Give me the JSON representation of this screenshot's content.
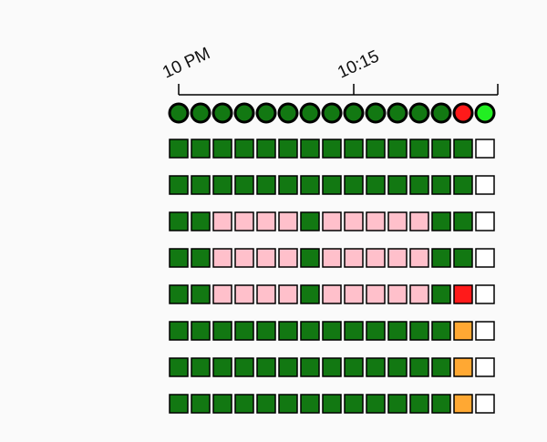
{
  "chart_data": {
    "type": "heatmap",
    "title": "",
    "xlabel": "",
    "ylabel": "",
    "time_axis": {
      "tick_labels": [
        "10 PM",
        "10:15"
      ],
      "tick_columns": [
        0,
        8
      ],
      "end_tick_column": 14.5
    },
    "columns": 15,
    "status_dots": [
      "green",
      "green",
      "green",
      "green",
      "green",
      "green",
      "green",
      "green",
      "green",
      "green",
      "green",
      "green",
      "green",
      "red",
      "bright-green"
    ],
    "rows": [
      [
        "green",
        "green",
        "green",
        "green",
        "green",
        "green",
        "green",
        "green",
        "green",
        "green",
        "green",
        "green",
        "green",
        "green",
        "empty"
      ],
      [
        "green",
        "green",
        "green",
        "green",
        "green",
        "green",
        "green",
        "green",
        "green",
        "green",
        "green",
        "green",
        "green",
        "green",
        "empty"
      ],
      [
        "green",
        "green",
        "pink",
        "pink",
        "pink",
        "pink",
        "green",
        "pink",
        "pink",
        "pink",
        "pink",
        "pink",
        "green",
        "green",
        "empty"
      ],
      [
        "green",
        "green",
        "pink",
        "pink",
        "pink",
        "pink",
        "green",
        "pink",
        "pink",
        "pink",
        "pink",
        "pink",
        "green",
        "green",
        "empty"
      ],
      [
        "green",
        "green",
        "pink",
        "pink",
        "pink",
        "pink",
        "green",
        "pink",
        "pink",
        "pink",
        "pink",
        "pink",
        "green",
        "red",
        "empty"
      ],
      [
        "green",
        "green",
        "green",
        "green",
        "green",
        "green",
        "green",
        "green",
        "green",
        "green",
        "green",
        "green",
        "green",
        "orange",
        "empty"
      ],
      [
        "green",
        "green",
        "green",
        "green",
        "green",
        "green",
        "green",
        "green",
        "green",
        "green",
        "green",
        "green",
        "green",
        "orange",
        "empty"
      ],
      [
        "green",
        "green",
        "green",
        "green",
        "green",
        "green",
        "green",
        "green",
        "green",
        "green",
        "green",
        "green",
        "green",
        "orange",
        "empty"
      ]
    ],
    "colors": {
      "green": "#127812",
      "pink": "#ffc0cb",
      "red": "#ff1a1a",
      "orange": "#ffa833",
      "bright-green": "#22ee22",
      "empty": "#ffffff",
      "stroke": "#000000",
      "background": "#fafafa"
    }
  }
}
